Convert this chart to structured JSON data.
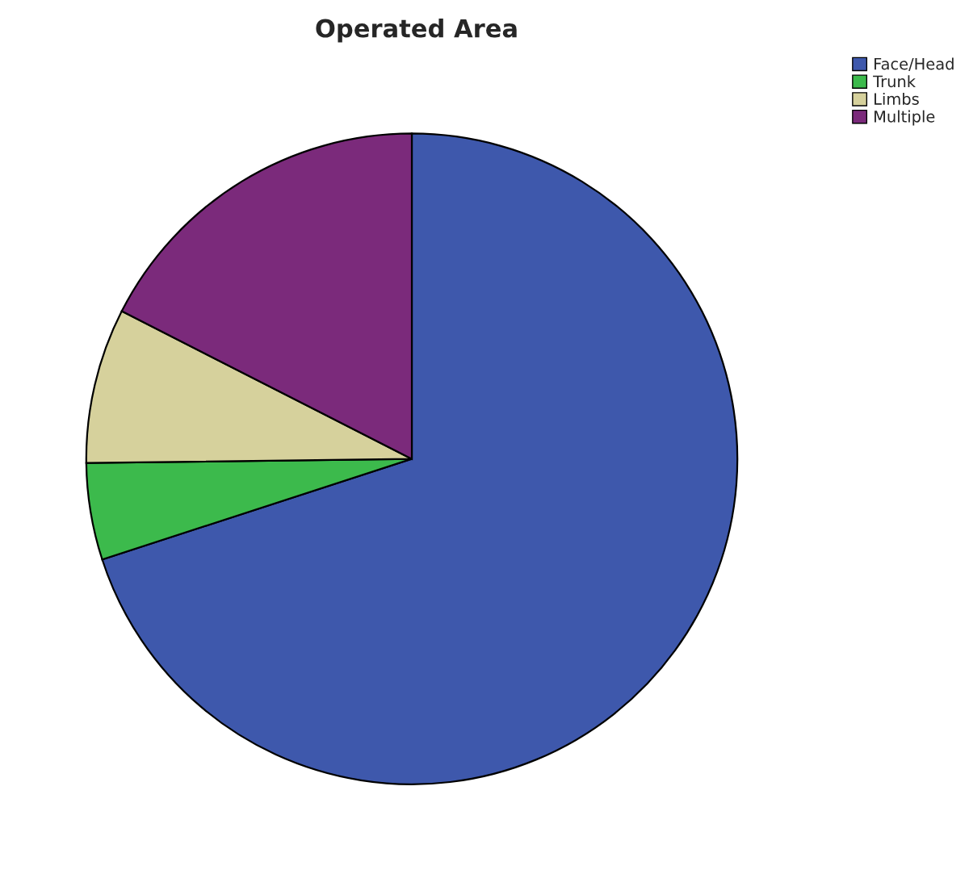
{
  "chart_data": {
    "type": "pie",
    "title": "Operated Area",
    "categories": [
      "Face/Head",
      "Trunk",
      "Limbs",
      "Multiple"
    ],
    "values": [
      70,
      4.8,
      7.7,
      17.5
    ],
    "colors": [
      "#3e58ac",
      "#3cba4c",
      "#d6d19c",
      "#7b2a7b"
    ],
    "legend": "top right"
  }
}
